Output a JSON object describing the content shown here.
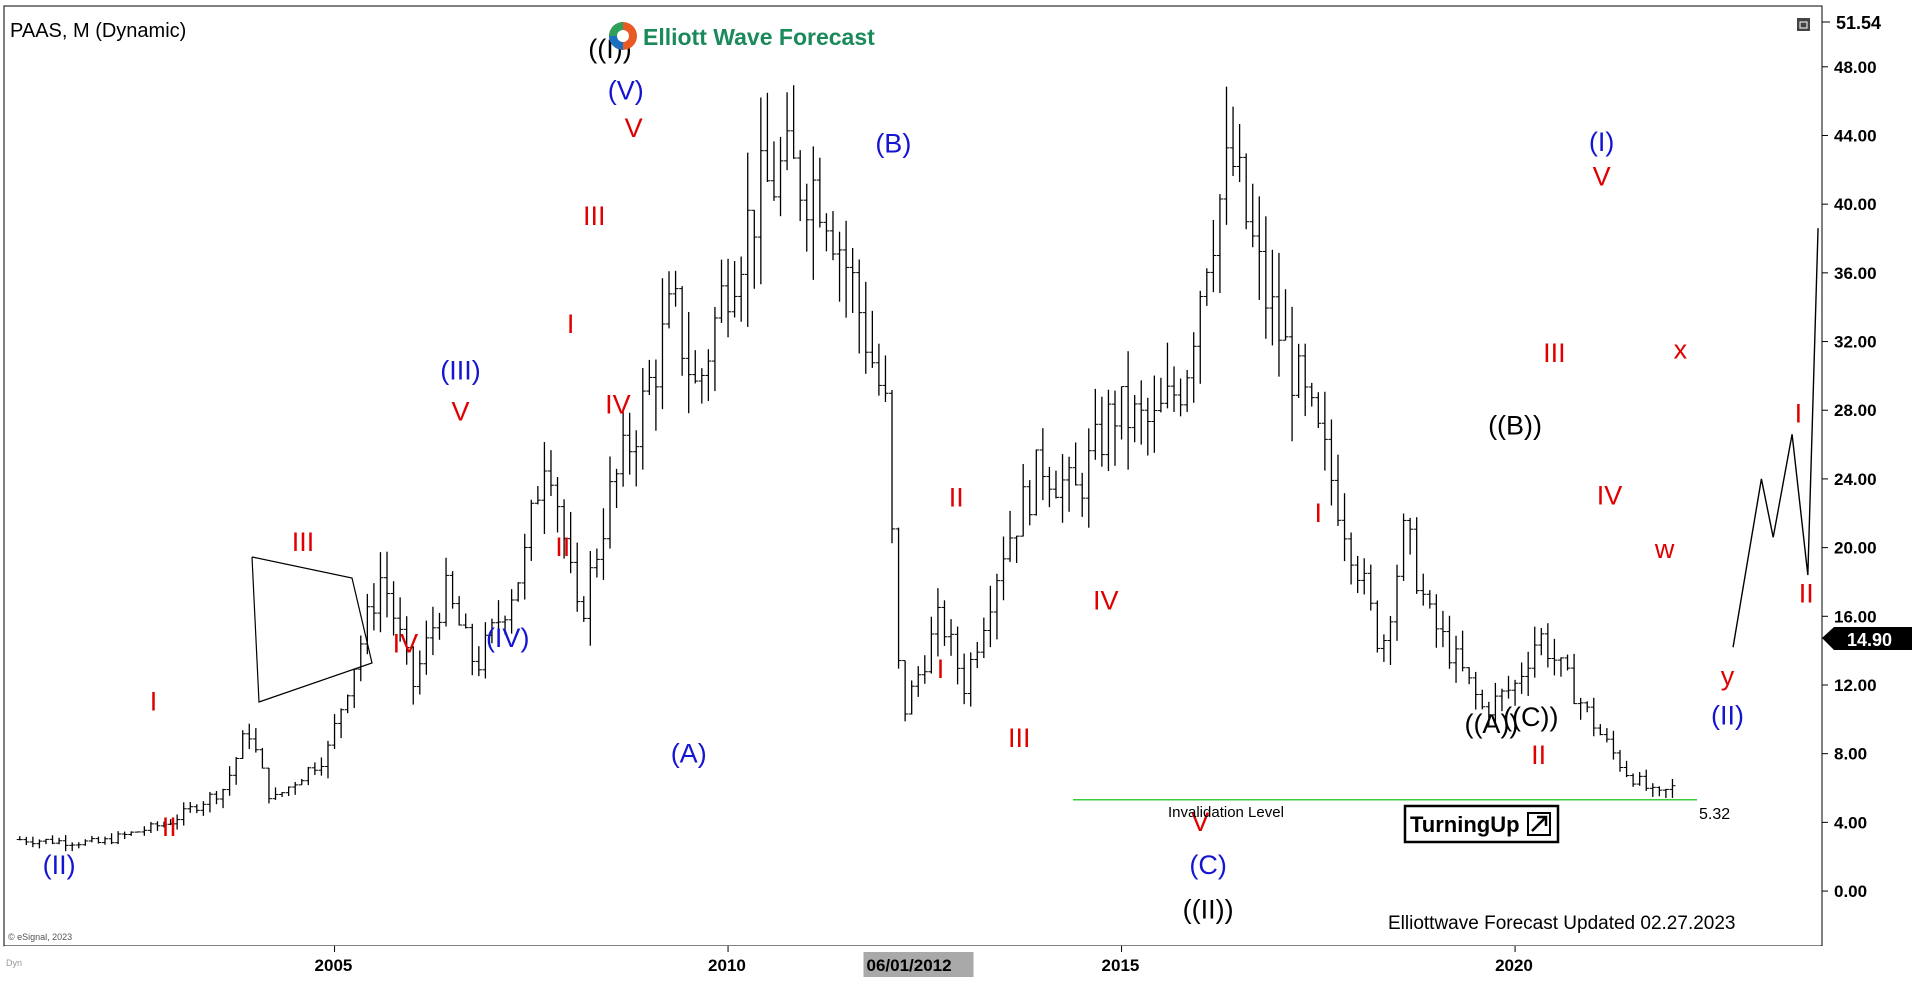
{
  "header": {
    "symbol_title": "PAAS, M (Dynamic)",
    "brand": "Elliott Wave Forecast",
    "copyright": "© eSignal, 2023",
    "corner_text": "Dyn",
    "footer": "Elliottwave Forecast Updated 02.27.2023",
    "badge": "TurningUp",
    "badge_icon": "arrow-up-right-icon",
    "invalidation_label": "Invalidation Level",
    "invalidation_value": "5.32",
    "top_price": "51.54",
    "last_price": "14.90",
    "crosshair_date": "06/01/2012"
  },
  "colors": {
    "red": "#e00000",
    "blue": "#1414d2",
    "black": "#000000",
    "green_line": "#3ccc3c",
    "brand_green": "#1b8a5a"
  },
  "chart_data": {
    "type": "ohlc",
    "timeframe": "monthly",
    "xlim": [
      2000.8,
      2023.9
    ],
    "ylim": [
      -3.2,
      51.54
    ],
    "y_ticks": [
      {
        "value": 0,
        "label": "0.00"
      },
      {
        "value": 4,
        "label": "4.00"
      },
      {
        "value": 8,
        "label": "8.00"
      },
      {
        "value": 12,
        "label": "12.00"
      },
      {
        "value": 16,
        "label": "16.00"
      },
      {
        "value": 20,
        "label": "20.00"
      },
      {
        "value": 24,
        "label": "24.00"
      },
      {
        "value": 28,
        "label": "28.00"
      },
      {
        "value": 32,
        "label": "32.00"
      },
      {
        "value": 36,
        "label": "36.00"
      },
      {
        "value": 40,
        "label": "40.00"
      },
      {
        "value": 44,
        "label": "44.00"
      },
      {
        "value": 48,
        "label": "48.00"
      }
    ],
    "x_ticks": [
      {
        "value": 2005,
        "label": "2005"
      },
      {
        "value": 2010,
        "label": "2010"
      },
      {
        "value": 2015,
        "label": "2015"
      },
      {
        "value": 2020,
        "label": "2020"
      }
    ],
    "crosshair_x": 2012.42,
    "price_path": [
      [
        2001.0,
        3.0
      ],
      [
        2002.0,
        2.8
      ],
      [
        2002.9,
        4.0
      ],
      [
        2003.6,
        6.0
      ],
      [
        2003.9,
        9.5
      ],
      [
        2004.2,
        5.2
      ],
      [
        2004.9,
        8.0
      ],
      [
        2005.6,
        18.5
      ],
      [
        2006.0,
        12.0
      ],
      [
        2006.4,
        17.5
      ],
      [
        2006.8,
        13.0
      ],
      [
        2007.1,
        16.0
      ],
      [
        2007.4,
        19.0
      ],
      [
        2007.7,
        26.5
      ],
      [
        2008.1,
        15.5
      ],
      [
        2008.5,
        23.0
      ],
      [
        2008.9,
        28.0
      ],
      [
        2009.3,
        34.0
      ],
      [
        2009.6,
        29.0
      ],
      [
        2010.0,
        36.0
      ],
      [
        2010.4,
        40.5
      ],
      [
        2010.7,
        42.0
      ],
      [
        2011.2,
        41.0
      ],
      [
        2011.6,
        35.0
      ],
      [
        2012.0,
        28.0
      ],
      [
        2012.2,
        10.0
      ],
      [
        2012.7,
        16.0
      ],
      [
        2013.0,
        12.0
      ],
      [
        2013.5,
        20.0
      ],
      [
        2014.0,
        25.0
      ],
      [
        2014.4,
        23.0
      ],
      [
        2014.9,
        28.0
      ],
      [
        2015.4,
        27.0
      ],
      [
        2015.8,
        30.0
      ],
      [
        2016.1,
        38.0
      ],
      [
        2016.4,
        42.5
      ],
      [
        2016.8,
        35.0
      ],
      [
        2017.2,
        30.0
      ],
      [
        2017.6,
        25.0
      ],
      [
        2018.0,
        19.0
      ],
      [
        2018.3,
        14.0
      ],
      [
        2018.6,
        21.0
      ],
      [
        2018.9,
        16.0
      ],
      [
        2019.3,
        13.0
      ],
      [
        2019.6,
        10.5
      ],
      [
        2020.0,
        12.0
      ],
      [
        2020.3,
        15.0
      ],
      [
        2020.7,
        12.0
      ],
      [
        2021.1,
        9.0
      ],
      [
        2021.4,
        7.0
      ],
      [
        2021.8,
        5.5
      ],
      [
        2022.0,
        6.0
      ]
    ],
    "projection": [
      [
        2022.77,
        14.2
      ],
      [
        2023.13,
        24.0
      ],
      [
        2023.28,
        20.6
      ],
      [
        2023.52,
        26.6
      ],
      [
        2023.72,
        18.4
      ],
      [
        2023.85,
        38.6
      ]
    ],
    "invalidation_level": 5.32,
    "labels": [
      {
        "text": "(II)",
        "x": 2001.5,
        "y": 1.0,
        "color": "blue"
      },
      {
        "text": "I",
        "x": 2002.7,
        "y": 10.5,
        "color": "red"
      },
      {
        "text": "II",
        "x": 2002.9,
        "y": 3.2,
        "color": "red"
      },
      {
        "text": "III",
        "x": 2004.6,
        "y": 19.8,
        "color": "red"
      },
      {
        "text": "IV",
        "x": 2005.9,
        "y": 13.9,
        "color": "red"
      },
      {
        "text": "(III)",
        "x": 2006.6,
        "y": 29.8,
        "color": "blue"
      },
      {
        "text": "V",
        "x": 2006.6,
        "y": 27.4,
        "color": "red"
      },
      {
        "text": "(IV)",
        "x": 2007.2,
        "y": 14.2,
        "color": "blue"
      },
      {
        "text": "I",
        "x": 2008.0,
        "y": 32.5,
        "color": "red"
      },
      {
        "text": "II",
        "x": 2007.9,
        "y": 19.5,
        "color": "red"
      },
      {
        "text": "III",
        "x": 2008.3,
        "y": 38.8,
        "color": "red"
      },
      {
        "text": "IV",
        "x": 2008.6,
        "y": 27.8,
        "color": "red"
      },
      {
        "text": "V",
        "x": 2008.8,
        "y": 43.9,
        "color": "red"
      },
      {
        "text": "(V)",
        "x": 2008.7,
        "y": 46.1,
        "color": "blue"
      },
      {
        "text": "((I))",
        "x": 2008.5,
        "y": 48.5,
        "color": "black"
      },
      {
        "text": "(A)",
        "x": 2009.5,
        "y": 7.5,
        "color": "blue"
      },
      {
        "text": "(B)",
        "x": 2012.1,
        "y": 43.0,
        "color": "blue"
      },
      {
        "text": "II",
        "x": 2012.9,
        "y": 22.4,
        "color": "red"
      },
      {
        "text": "I",
        "x": 2012.7,
        "y": 12.4,
        "color": "red"
      },
      {
        "text": "III",
        "x": 2013.7,
        "y": 8.4,
        "color": "red"
      },
      {
        "text": "IV",
        "x": 2014.8,
        "y": 16.4,
        "color": "red"
      },
      {
        "text": "V",
        "x": 2016.0,
        "y": 3.5,
        "color": "red"
      },
      {
        "text": "(C)",
        "x": 2016.1,
        "y": 1.0,
        "color": "blue"
      },
      {
        "text": "((II))",
        "x": 2016.1,
        "y": -1.6,
        "color": "black"
      },
      {
        "text": "I",
        "x": 2017.5,
        "y": 21.5,
        "color": "red"
      },
      {
        "text": "((A))",
        "x": 2019.7,
        "y": 9.2,
        "color": "black"
      },
      {
        "text": "((B))",
        "x": 2020.0,
        "y": 26.6,
        "color": "black"
      },
      {
        "text": "((C))",
        "x": 2020.2,
        "y": 9.6,
        "color": "black"
      },
      {
        "text": "II",
        "x": 2020.3,
        "y": 7.4,
        "color": "red"
      },
      {
        "text": "III",
        "x": 2020.5,
        "y": 30.8,
        "color": "red"
      },
      {
        "text": "IV",
        "x": 2021.2,
        "y": 22.5,
        "color": "red"
      },
      {
        "text": "V",
        "x": 2021.1,
        "y": 41.1,
        "color": "red"
      },
      {
        "text": "(I)",
        "x": 2021.1,
        "y": 43.1,
        "color": "blue"
      },
      {
        "text": "x",
        "x": 2022.1,
        "y": 31.0,
        "color": "red"
      },
      {
        "text": "w",
        "x": 2021.9,
        "y": 19.4,
        "color": "red"
      },
      {
        "text": "y",
        "x": 2022.7,
        "y": 12.0,
        "color": "red"
      },
      {
        "text": "(II)",
        "x": 2022.7,
        "y": 9.7,
        "color": "blue"
      },
      {
        "text": "I",
        "x": 2023.6,
        "y": 27.3,
        "color": "red"
      },
      {
        "text": "II",
        "x": 2023.7,
        "y": 16.8,
        "color": "red"
      }
    ]
  }
}
